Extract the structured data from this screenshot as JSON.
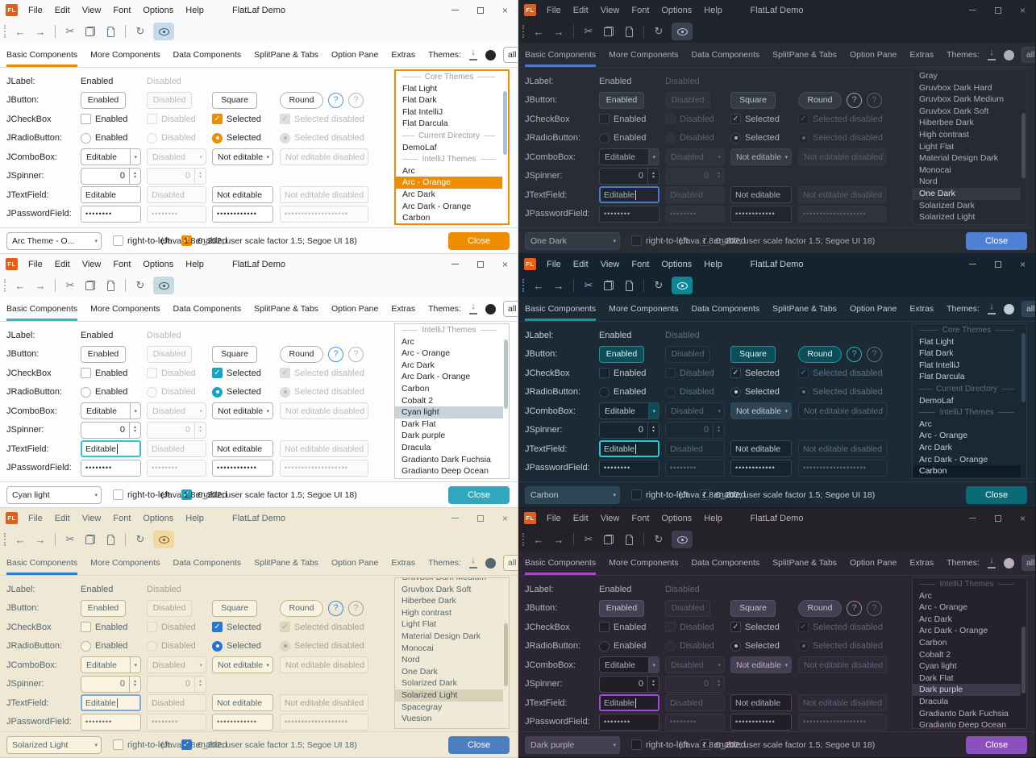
{
  "shared": {
    "title": "FlatLaf Demo",
    "logo": "FL",
    "menus": [
      "File",
      "Edit",
      "View",
      "Font",
      "Options",
      "Help"
    ],
    "tabs": [
      "Basic Components",
      "More Components",
      "Data Components",
      "SplitPane & Tabs",
      "Option Pane",
      "Extras"
    ],
    "themes_label": "Themes:",
    "filter_value": "all",
    "icons": {
      "back": "←",
      "forward": "→",
      "cut": "✂",
      "refresh": "↻",
      "close": "×",
      "dropdown": "▾",
      "check": "✓",
      "spin_up": "▴",
      "spin_down": "▾",
      "help": "?"
    },
    "grid": {
      "jlabel": {
        "label": "JLabel:",
        "enabled": "Enabled",
        "disabled": "Disabled"
      },
      "jbutton": {
        "label": "JButton:",
        "enabled": "Enabled",
        "disabled": "Disabled",
        "square": "Square",
        "round": "Round",
        "help": "?"
      },
      "jcheckbox": {
        "label": "JCheckBox",
        "enabled": "Enabled",
        "disabled": "Disabled",
        "selected": "Selected",
        "selected_disabled": "Selected disabled"
      },
      "jradiobutton": {
        "label": "JRadioButton:",
        "enabled": "Enabled",
        "disabled": "Disabled",
        "selected": "Selected",
        "selected_disabled": "Selected disabled"
      },
      "jcombobox": {
        "label": "JComboBox:",
        "editable": "Editable",
        "disabled": "Disabled",
        "not_editable": "Not editable",
        "not_editable_disabled": "Not editable disabled"
      },
      "jspinner": {
        "label": "JSpinner:",
        "value": "0"
      },
      "jtextfield": {
        "label": "JTextField:",
        "editable": "Editable",
        "disabled": "Disabled",
        "not_editable": "Not editable",
        "not_editable_disabled": "Not editable disabled"
      },
      "jpasswordfield": {
        "label": "JPasswordField:",
        "p1": "••••••••",
        "p2": "••••••••",
        "p3": "••••••••••••",
        "p4": "•••••••••••••••••••"
      }
    },
    "rtl_label": "right-to-left",
    "enabled_label": "enabled",
    "java_info": "(Java 1.8.0_202;  user scale factor 1.5; Segoe UI 18)",
    "close_label": "Close"
  },
  "windows": [
    {
      "name": "arc-orange",
      "mode": "light",
      "focus": "themes-list",
      "bottom_combo": "Arc Theme - O...",
      "palette": {
        "content": "#fdfdfd",
        "chrome": "#fafafa",
        "fg": "#262626",
        "muted": "#b9b9b9",
        "border": "#d6d6d6",
        "ctrl_border": "#b3b3b3",
        "dis_border": "#dcdcdc",
        "field_bg": "#ffffff",
        "list_bg": "#ffffff",
        "btn_bg": "#ffffff",
        "btn_border": "#b3b3b3",
        "btn_fg": "#262626",
        "dis_btn_bg": "#fbfbfb",
        "accent": "#f08c00",
        "sel_bg": "#f08c00",
        "sel_fg": "#ffffff",
        "close_bg": "#f08c00",
        "close_fg": "#ffffff",
        "help": "#5294e2",
        "eye_bg": "#c6dcec",
        "eye_fg": "#33566e",
        "icon": "#64727d",
        "check_bg": "#f08c00",
        "check_fg": "#ffffff",
        "check_border": "#f08c00",
        "dis_check_bg": "#dedede",
        "focus_border": "#f08c00",
        "combo_btn_bg": "#ffffff",
        "scroll_thumb": "#aabfd3",
        "list_border": "#f08c00",
        "caret": "#262626",
        "sep_text": "#9a9a9a"
      },
      "themes_list": {
        "scroll_top": "13%",
        "scroll_height": "42%",
        "items": [
          {
            "t": "sep",
            "label": "Core Themes"
          },
          {
            "t": "item",
            "label": "Flat Light"
          },
          {
            "t": "item",
            "label": "Flat Dark"
          },
          {
            "t": "item",
            "label": "Flat IntelliJ"
          },
          {
            "t": "item",
            "label": "Flat Darcula"
          },
          {
            "t": "sep",
            "label": "Current Directory"
          },
          {
            "t": "item",
            "label": "DemoLaf"
          },
          {
            "t": "sep",
            "label": "IntelliJ Themes"
          },
          {
            "t": "item",
            "label": "Arc"
          },
          {
            "t": "item",
            "label": "Arc - Orange",
            "selected": true
          },
          {
            "t": "item",
            "label": "Arc Dark"
          },
          {
            "t": "item",
            "label": "Arc Dark - Orange"
          },
          {
            "t": "item",
            "label": "Carbon"
          }
        ]
      }
    },
    {
      "name": "one-dark",
      "mode": "dark",
      "focus": "textfield",
      "bottom_combo": "One Dark",
      "palette": {
        "content": "#282c34",
        "chrome": "#21252b",
        "fg": "#a9b1bd",
        "muted": "#5b626e",
        "border": "#181b20",
        "ctrl_border": "#3d434f",
        "dis_border": "#31363f",
        "field_bg": "#21252d",
        "list_bg": "#262a32",
        "btn_bg": "#353b45",
        "btn_border": "#454c59",
        "btn_fg": "#c0c6d0",
        "dis_btn_bg": "#2e333c",
        "accent": "#4d78cc",
        "sel_bg": "#323844",
        "sel_fg": "#dfe2e8",
        "close_bg": "#4e81d6",
        "close_fg": "#ffffff",
        "help": "#99a0ad",
        "eye_bg": "#3b4250",
        "eye_fg": "#c6cbd4",
        "icon": "#9aa1ae",
        "check_bg": "#21252d",
        "check_fg": "#a9b1bd",
        "check_border": "#3d434f",
        "dis_check_bg": "#21252d",
        "focus_border": "#4d78cc",
        "combo_btn_bg": "#353b45",
        "scroll_thumb": "#464d5a",
        "list_border": "#31363f",
        "caret": "#d0d4da",
        "sep_text": "#5b626e"
      },
      "themes_list": {
        "scroll_top": "28%",
        "scroll_height": "42%",
        "items": [
          {
            "t": "item",
            "label": "Gray"
          },
          {
            "t": "item",
            "label": "Gruvbox Dark Hard"
          },
          {
            "t": "item",
            "label": "Gruvbox Dark Medium"
          },
          {
            "t": "item",
            "label": "Gruvbox Dark Soft"
          },
          {
            "t": "item",
            "label": "Hiberbee Dark"
          },
          {
            "t": "item",
            "label": "High contrast"
          },
          {
            "t": "item",
            "label": "Light Flat"
          },
          {
            "t": "item",
            "label": "Material Design Dark"
          },
          {
            "t": "item",
            "label": "Monocai"
          },
          {
            "t": "item",
            "label": "Nord"
          },
          {
            "t": "item",
            "label": "One Dark",
            "selected": true
          },
          {
            "t": "item",
            "label": "Solarized Dark"
          },
          {
            "t": "item",
            "label": "Solarized Light"
          }
        ]
      }
    },
    {
      "name": "cyan-light",
      "mode": "light",
      "focus": "textfield",
      "bottom_combo": "Cyan light",
      "palette": {
        "content": "#fdfdfd",
        "chrome": "#fafafa",
        "fg": "#262626",
        "muted": "#b9b9b9",
        "border": "#d6d6d6",
        "ctrl_border": "#b3b3b3",
        "dis_border": "#dcdcdc",
        "field_bg": "#ffffff",
        "list_bg": "#ffffff",
        "btn_bg": "#ffffff",
        "btn_border": "#b3b3b3",
        "btn_fg": "#262626",
        "dis_btn_bg": "#fbfbfb",
        "accent": "#2bb8cf",
        "sel_bg": "#c6d3d9",
        "sel_fg": "#262626",
        "close_bg": "#31a7bd",
        "close_fg": "#ffffff",
        "help": "#4a90d9",
        "eye_bg": "#c9d9e0",
        "eye_fg": "#33566e",
        "icon": "#64727d",
        "check_bg": "#17a3c4",
        "check_fg": "#ffffff",
        "check_border": "#17a3c4",
        "dis_check_bg": "#dedede",
        "focus_border": "#2fc4d8",
        "combo_btn_bg": "#ffffff",
        "scroll_thumb": "#b6c4cc",
        "list_border": "#c9c9c9",
        "caret": "#262626",
        "sep_text": "#9a9a9a"
      },
      "themes_list": {
        "scroll_top": "10%",
        "scroll_height": "45%",
        "items": [
          {
            "t": "sep",
            "label": "IntelliJ Themes"
          },
          {
            "t": "item",
            "label": "Arc"
          },
          {
            "t": "item",
            "label": "Arc - Orange"
          },
          {
            "t": "item",
            "label": "Arc Dark"
          },
          {
            "t": "item",
            "label": "Arc Dark - Orange"
          },
          {
            "t": "item",
            "label": "Carbon"
          },
          {
            "t": "item",
            "label": "Cobalt 2"
          },
          {
            "t": "item",
            "label": "Cyan light",
            "selected": true
          },
          {
            "t": "item",
            "label": "Dark Flat"
          },
          {
            "t": "item",
            "label": "Dark purple"
          },
          {
            "t": "item",
            "label": "Dracula"
          },
          {
            "t": "item",
            "label": "Gradianto Dark Fuchsia"
          },
          {
            "t": "item",
            "label": "Gradianto Deep Ocean"
          }
        ]
      }
    },
    {
      "name": "carbon",
      "mode": "dark",
      "focus": "textfield",
      "bottom_combo": "Carbon",
      "palette": {
        "content": "#1c2a35",
        "chrome": "#152331",
        "fg": "#c0cdd6",
        "muted": "#587283",
        "border": "#0e1a24",
        "ctrl_border": "#31485a",
        "dis_border": "#27394a",
        "field_bg": "#16242f",
        "list_bg": "#1a2831",
        "btn_bg": "#0b4e59",
        "btn_border": "#0f9aa8",
        "btn_fg": "#e4f4f6",
        "dis_btn_bg": "#1a2833",
        "accent": "#0f9aa8",
        "sel_bg": "#0e1c27",
        "sel_fg": "#d4e4ee",
        "close_bg": "#0a6b76",
        "close_fg": "#f2fbfc",
        "help": "#2fb3c0",
        "eye_bg": "#0d8795",
        "eye_fg": "#eafcff",
        "icon": "#9db3c0",
        "check_bg": "#16242f",
        "check_fg": "#c0cdd6",
        "check_border": "#31485a",
        "dis_check_bg": "#16242f",
        "focus_border": "#27c7d7",
        "combo_btn_bg": "#2c4454",
        "scroll_thumb": "#31485a",
        "list_border": "#27394a",
        "caret": "#d8e8f0",
        "sep_text": "#587283"
      },
      "themes_list": {
        "scroll_top": "6%",
        "scroll_height": "45%",
        "items": [
          {
            "t": "sep",
            "label": "Core Themes"
          },
          {
            "t": "item",
            "label": "Flat Light"
          },
          {
            "t": "item",
            "label": "Flat Dark"
          },
          {
            "t": "item",
            "label": "Flat IntelliJ"
          },
          {
            "t": "item",
            "label": "Flat Darcula"
          },
          {
            "t": "sep",
            "label": "Current Directory"
          },
          {
            "t": "item",
            "label": "DemoLaf"
          },
          {
            "t": "sep",
            "label": "IntelliJ Themes"
          },
          {
            "t": "item",
            "label": "Arc"
          },
          {
            "t": "item",
            "label": "Arc - Orange"
          },
          {
            "t": "item",
            "label": "Arc Dark"
          },
          {
            "t": "item",
            "label": "Arc Dark - Orange"
          },
          {
            "t": "item",
            "label": "Carbon",
            "selected": true
          }
        ]
      }
    },
    {
      "name": "solarized-light",
      "mode": "light",
      "focus": "textfield",
      "bottom_combo": "Solarized Light",
      "palette": {
        "content": "#eee8d5",
        "chrome": "#eee8d5",
        "fg": "#53676f",
        "muted": "#a9a389",
        "border": "#d2cbb2",
        "ctrl_border": "#bcb595",
        "dis_border": "#ddd6bd",
        "field_bg": "#faf3e0",
        "list_bg": "#efe9d7",
        "btn_bg": "#f9f2df",
        "btn_border": "#bcb595",
        "btn_fg": "#53676f",
        "dis_btn_bg": "#f2ecd9",
        "accent": "#2a7bd2",
        "sel_bg": "#d8d1b8",
        "sel_fg": "#474f52",
        "close_bg": "#4d7ebf",
        "close_fg": "#ffffff",
        "help": "#3f88d4",
        "eye_bg": "#f2d9a2",
        "eye_fg": "#7a5b1e",
        "icon": "#657b83",
        "check_bg": "#2375d8",
        "check_fg": "#ffffff",
        "check_border": "#2375d8",
        "dis_check_bg": "#ded7c0",
        "focus_border": "#7fa8dc",
        "combo_btn_bg": "#f9f2df",
        "scroll_thumb": "#c6bfa5",
        "list_border": "#cfc8ae",
        "caret": "#53676f",
        "sep_text": "#a9a389"
      },
      "themes_list": {
        "scroll_top": "30%",
        "scroll_height": "42%",
        "items": [
          {
            "t": "item",
            "label": "Gruvbox Dark Medium",
            "clip": true
          },
          {
            "t": "item",
            "label": "Gruvbox Dark Soft"
          },
          {
            "t": "item",
            "label": "Hiberbee Dark"
          },
          {
            "t": "item",
            "label": "High contrast"
          },
          {
            "t": "item",
            "label": "Light Flat"
          },
          {
            "t": "item",
            "label": "Material Design Dark"
          },
          {
            "t": "item",
            "label": "Monocai"
          },
          {
            "t": "item",
            "label": "Nord"
          },
          {
            "t": "item",
            "label": "One Dark"
          },
          {
            "t": "item",
            "label": "Solarized Dark"
          },
          {
            "t": "item",
            "label": "Solarized Light",
            "selected": true
          },
          {
            "t": "item",
            "label": "Spacegray"
          },
          {
            "t": "item",
            "label": "Vuesion"
          }
        ]
      }
    },
    {
      "name": "dark-purple",
      "mode": "dark",
      "focus": "textfield",
      "bottom_combo": "Dark purple",
      "palette": {
        "content": "#2b2732",
        "chrome": "#252129",
        "fg": "#b7b1c0",
        "muted": "#676074",
        "border": "#18161d",
        "ctrl_border": "#4a4458",
        "dis_border": "#3a3443",
        "field_bg": "#211e27",
        "list_bg": "#26222c",
        "btn_bg": "#453f54",
        "btn_border": "#57506b",
        "btn_fg": "#cac4d6",
        "dis_btn_bg": "#2e2a38",
        "accent": "#a74dc0",
        "sel_bg": "#3c3749",
        "sel_fg": "#d2ccdc",
        "close_bg": "#8a50bc",
        "close_fg": "#ffffff",
        "help": "#968ba8",
        "eye_bg": "#403a4f",
        "eye_fg": "#c6c0d2",
        "icon": "#a29bb0",
        "check_bg": "#211e27",
        "check_fg": "#b7b1c0",
        "check_border": "#4a4458",
        "dis_check_bg": "#211e27",
        "focus_border": "#9a4ddb",
        "combo_btn_bg": "#453f54",
        "scroll_thumb": "#4a4458",
        "list_border": "#3a3443",
        "caret": "#d6d0e0",
        "sep_text": "#676074"
      },
      "themes_list": {
        "scroll_top": "32%",
        "scroll_height": "45%",
        "items": [
          {
            "t": "sep",
            "label": "IntelliJ Themes"
          },
          {
            "t": "item",
            "label": "Arc"
          },
          {
            "t": "item",
            "label": "Arc - Orange"
          },
          {
            "t": "item",
            "label": "Arc Dark"
          },
          {
            "t": "item",
            "label": "Arc Dark - Orange"
          },
          {
            "t": "item",
            "label": "Carbon"
          },
          {
            "t": "item",
            "label": "Cobalt 2"
          },
          {
            "t": "item",
            "label": "Cyan light"
          },
          {
            "t": "item",
            "label": "Dark Flat"
          },
          {
            "t": "item",
            "label": "Dark purple",
            "selected": true
          },
          {
            "t": "item",
            "label": "Dracula"
          },
          {
            "t": "item",
            "label": "Gradianto Dark Fuchsia"
          },
          {
            "t": "item",
            "label": "Gradianto Deep Ocean"
          }
        ]
      }
    }
  ]
}
